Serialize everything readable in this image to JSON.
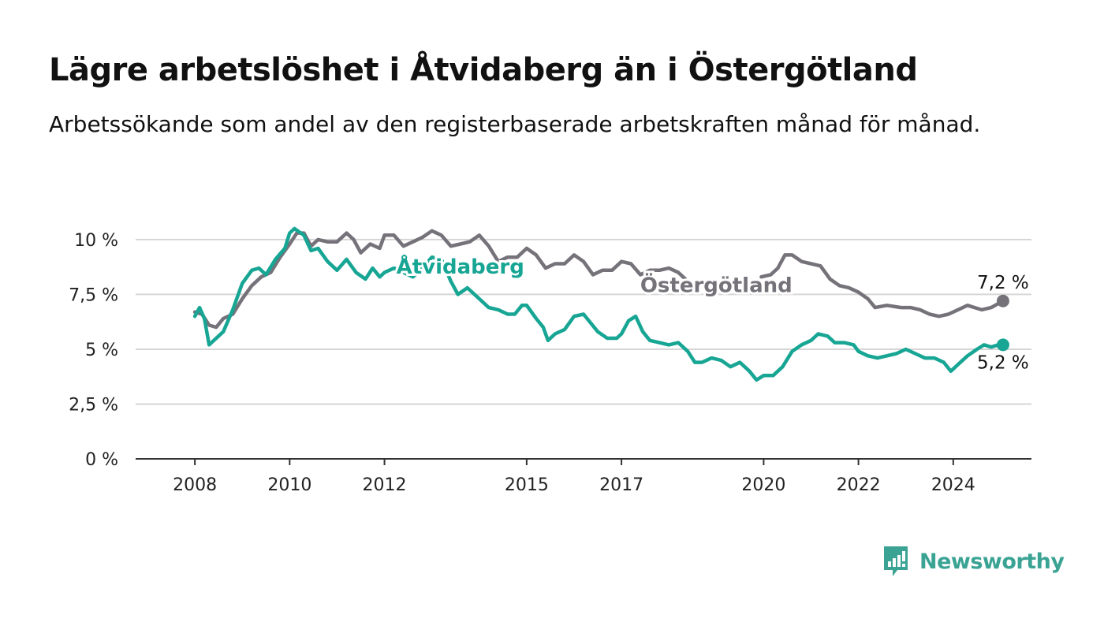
{
  "title": "Lägre arbetslöshet i Åtvidaberg än i Östergötland",
  "subtitle": "Arbetssökande som andel av den registerbaserade arbetskraften månad för månad.",
  "brand": {
    "name": "Newsworthy",
    "icon": "newsworthy-logo-icon",
    "color": "#3aa394"
  },
  "chart_data": {
    "type": "line",
    "y_ticks": [
      0,
      2.5,
      5,
      7.5,
      10
    ],
    "y_tick_labels": [
      "0 %",
      "2,5 %",
      "5 %",
      "7,5 %",
      "10 %"
    ],
    "x_ticks": [
      2008,
      2010,
      2012,
      2015,
      2017,
      2020,
      2022,
      2024
    ],
    "x_tick_labels": [
      "2008",
      "2010",
      "2012",
      "2015",
      "2017",
      "2020",
      "2022",
      "2024"
    ],
    "xlim": [
      2006.75,
      2025.65
    ],
    "ylim": [
      0,
      10.5
    ],
    "grid": "horizontal",
    "series": [
      {
        "name": "Östergötland",
        "color": "#75727a",
        "end_label": "7,2 %",
        "points": [
          [
            2008.0,
            6.7
          ],
          [
            2008.15,
            6.6
          ],
          [
            2008.3,
            6.1
          ],
          [
            2008.45,
            6.0
          ],
          [
            2008.6,
            6.4
          ],
          [
            2008.8,
            6.6
          ],
          [
            2009.0,
            7.3
          ],
          [
            2009.2,
            7.9
          ],
          [
            2009.4,
            8.3
          ],
          [
            2009.6,
            8.5
          ],
          [
            2009.8,
            9.2
          ],
          [
            2010.0,
            9.8
          ],
          [
            2010.15,
            10.3
          ],
          [
            2010.3,
            10.3
          ],
          [
            2010.45,
            9.7
          ],
          [
            2010.6,
            10.0
          ],
          [
            2010.8,
            9.9
          ],
          [
            2011.0,
            9.9
          ],
          [
            2011.2,
            10.3
          ],
          [
            2011.35,
            10.0
          ],
          [
            2011.5,
            9.4
          ],
          [
            2011.7,
            9.8
          ],
          [
            2011.9,
            9.6
          ],
          [
            2012.0,
            10.2
          ],
          [
            2012.2,
            10.2
          ],
          [
            2012.4,
            9.7
          ],
          [
            2012.6,
            9.9
          ],
          [
            2012.8,
            10.1
          ],
          [
            2013.0,
            10.4
          ],
          [
            2013.2,
            10.2
          ],
          [
            2013.4,
            9.7
          ],
          [
            2013.6,
            9.8
          ],
          [
            2013.8,
            9.9
          ],
          [
            2014.0,
            10.2
          ],
          [
            2014.2,
            9.7
          ],
          [
            2014.4,
            9.0
          ],
          [
            2014.6,
            9.2
          ],
          [
            2014.8,
            9.2
          ],
          [
            2015.0,
            9.6
          ],
          [
            2015.2,
            9.3
          ],
          [
            2015.4,
            8.7
          ],
          [
            2015.6,
            8.9
          ],
          [
            2015.8,
            8.9
          ],
          [
            2016.0,
            9.3
          ],
          [
            2016.2,
            9.0
          ],
          [
            2016.4,
            8.4
          ],
          [
            2016.6,
            8.6
          ],
          [
            2016.8,
            8.6
          ],
          [
            2017.0,
            9.0
          ],
          [
            2017.2,
            8.9
          ],
          [
            2017.4,
            8.4
          ],
          [
            2017.6,
            8.6
          ],
          [
            2017.8,
            8.6
          ],
          [
            2018.0,
            8.7
          ],
          [
            2018.2,
            8.5
          ],
          [
            2018.35,
            8.2
          ],
          [
            2019.95,
            8.3
          ],
          [
            2020.15,
            8.4
          ],
          [
            2020.3,
            8.7
          ],
          [
            2020.45,
            9.3
          ],
          [
            2020.6,
            9.3
          ],
          [
            2020.8,
            9.0
          ],
          [
            2021.0,
            8.9
          ],
          [
            2021.2,
            8.8
          ],
          [
            2021.4,
            8.2
          ],
          [
            2021.6,
            7.9
          ],
          [
            2021.8,
            7.8
          ],
          [
            2022.0,
            7.6
          ],
          [
            2022.2,
            7.3
          ],
          [
            2022.35,
            6.9
          ],
          [
            2022.6,
            7.0
          ],
          [
            2022.9,
            6.9
          ],
          [
            2023.1,
            6.9
          ],
          [
            2023.3,
            6.8
          ],
          [
            2023.5,
            6.6
          ],
          [
            2023.7,
            6.5
          ],
          [
            2023.9,
            6.6
          ],
          [
            2024.1,
            6.8
          ],
          [
            2024.3,
            7.0
          ],
          [
            2024.45,
            6.9
          ],
          [
            2024.6,
            6.8
          ],
          [
            2024.8,
            6.9
          ],
          [
            2025.05,
            7.2
          ]
        ]
      },
      {
        "name": "Åtvidaberg",
        "color": "#17a594",
        "end_label": "5,2 %",
        "points": [
          [
            2008.0,
            6.5
          ],
          [
            2008.1,
            6.9
          ],
          [
            2008.2,
            6.4
          ],
          [
            2008.3,
            5.2
          ],
          [
            2008.45,
            5.5
          ],
          [
            2008.6,
            5.8
          ],
          [
            2008.8,
            6.8
          ],
          [
            2009.0,
            8.0
          ],
          [
            2009.2,
            8.6
          ],
          [
            2009.35,
            8.7
          ],
          [
            2009.5,
            8.4
          ],
          [
            2009.7,
            9.1
          ],
          [
            2009.9,
            9.6
          ],
          [
            2010.0,
            10.3
          ],
          [
            2010.1,
            10.5
          ],
          [
            2010.3,
            10.2
          ],
          [
            2010.45,
            9.5
          ],
          [
            2010.6,
            9.6
          ],
          [
            2010.8,
            9.0
          ],
          [
            2011.0,
            8.6
          ],
          [
            2011.2,
            9.1
          ],
          [
            2011.4,
            8.5
          ],
          [
            2011.6,
            8.2
          ],
          [
            2011.75,
            8.7
          ],
          [
            2011.9,
            8.3
          ],
          [
            2012.0,
            8.5
          ],
          [
            2012.2,
            8.7
          ],
          [
            2012.4,
            8.5
          ],
          [
            2012.6,
            8.3
          ],
          [
            2012.8,
            8.7
          ],
          [
            2013.0,
            9.2
          ],
          [
            2013.2,
            9.1
          ],
          [
            2013.4,
            8.1
          ],
          [
            2013.55,
            7.5
          ],
          [
            2013.75,
            7.8
          ],
          [
            2014.0,
            7.3
          ],
          [
            2014.2,
            6.9
          ],
          [
            2014.4,
            6.8
          ],
          [
            2014.6,
            6.6
          ],
          [
            2014.75,
            6.6
          ],
          [
            2014.9,
            7.0
          ],
          [
            2015.0,
            7.0
          ],
          [
            2015.2,
            6.4
          ],
          [
            2015.35,
            6.0
          ],
          [
            2015.45,
            5.4
          ],
          [
            2015.6,
            5.7
          ],
          [
            2015.8,
            5.9
          ],
          [
            2016.0,
            6.5
          ],
          [
            2016.2,
            6.6
          ],
          [
            2016.35,
            6.2
          ],
          [
            2016.5,
            5.8
          ],
          [
            2016.7,
            5.5
          ],
          [
            2016.9,
            5.5
          ],
          [
            2017.0,
            5.7
          ],
          [
            2017.15,
            6.3
          ],
          [
            2017.3,
            6.5
          ],
          [
            2017.45,
            5.8
          ],
          [
            2017.6,
            5.4
          ],
          [
            2017.8,
            5.3
          ],
          [
            2018.0,
            5.2
          ],
          [
            2018.2,
            5.3
          ],
          [
            2018.4,
            4.9
          ],
          [
            2018.55,
            4.4
          ],
          [
            2018.7,
            4.4
          ],
          [
            2018.9,
            4.6
          ],
          [
            2019.1,
            4.5
          ],
          [
            2019.3,
            4.2
          ],
          [
            2019.5,
            4.4
          ],
          [
            2019.7,
            4.0
          ],
          [
            2019.85,
            3.6
          ],
          [
            2020.0,
            3.8
          ],
          [
            2020.2,
            3.8
          ],
          [
            2020.4,
            4.2
          ],
          [
            2020.6,
            4.9
          ],
          [
            2020.8,
            5.2
          ],
          [
            2021.0,
            5.4
          ],
          [
            2021.15,
            5.7
          ],
          [
            2021.35,
            5.6
          ],
          [
            2021.5,
            5.3
          ],
          [
            2021.7,
            5.3
          ],
          [
            2021.9,
            5.2
          ],
          [
            2022.0,
            4.9
          ],
          [
            2022.2,
            4.7
          ],
          [
            2022.4,
            4.6
          ],
          [
            2022.6,
            4.7
          ],
          [
            2022.8,
            4.8
          ],
          [
            2023.0,
            5.0
          ],
          [
            2023.2,
            4.8
          ],
          [
            2023.4,
            4.6
          ],
          [
            2023.6,
            4.6
          ],
          [
            2023.8,
            4.4
          ],
          [
            2023.95,
            4.0
          ],
          [
            2024.1,
            4.3
          ],
          [
            2024.3,
            4.7
          ],
          [
            2024.5,
            5.0
          ],
          [
            2024.65,
            5.2
          ],
          [
            2024.8,
            5.1
          ],
          [
            2024.95,
            5.2
          ],
          [
            2025.05,
            5.2
          ]
        ]
      }
    ]
  }
}
